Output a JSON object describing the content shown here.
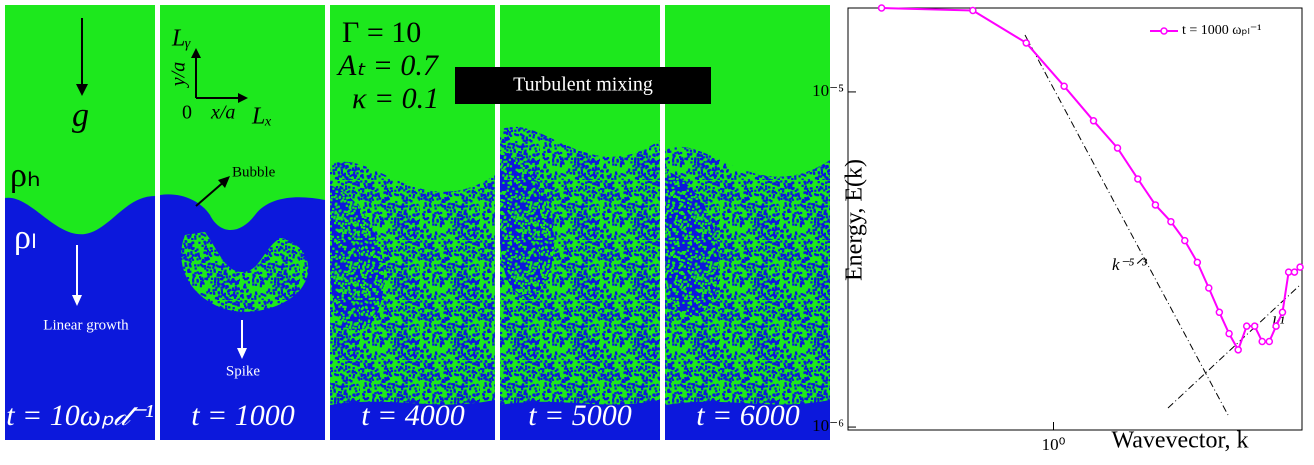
{
  "left": {
    "gravity": "g",
    "rho_h": "ρₕ",
    "rho_l": "ρₗ",
    "linear_growth": "Linear growth",
    "bubble": "Bubble",
    "spike": "Spike",
    "axis_ly": "Lᵧ",
    "axis_ya": "y/a",
    "axis_zero": "0",
    "axis_xa": "x/a",
    "axis_lx": "Lₓ",
    "params": [
      "Γ = 10",
      "Aₜ = 0.7",
      "κ = 0.1"
    ],
    "banner": "Turbulent mixing",
    "times": [
      "t = 10ωₚ𝒹⁻¹",
      "t = 1000",
      "t = 4000",
      "t = 5000",
      "t = 6000"
    ]
  },
  "chart_data": {
    "type": "line",
    "xlabel": "Wavevector, k",
    "ylabel": "Energy, E(k)",
    "xscale": "log",
    "yscale": "log",
    "xlim": [
      0.21,
      6.6
    ],
    "ylim": [
      9.8e-07,
      1.78e-05
    ],
    "xticks": [
      {
        "value": 1,
        "label": "10⁰"
      }
    ],
    "yticks": [
      {
        "value": 1e-06,
        "label": "10⁻⁶"
      },
      {
        "value": 1e-05,
        "label": "10⁻⁵"
      }
    ],
    "x": [
      0.271,
      0.542,
      0.813,
      1.084,
      1.355,
      1.626,
      1.897,
      2.168,
      2.439,
      2.71,
      2.981,
      3.252,
      3.523,
      3.794,
      4.065,
      4.336,
      4.607,
      4.878,
      5.149,
      5.42,
      5.691,
      5.962,
      6.233,
      6.504
    ],
    "series": [
      {
        "name": "t = 1000 ωₚₗ⁻¹",
        "color": "#ff00ff",
        "values": [
          1.78e-05,
          1.75e-05,
          1.4e-05,
          1.04e-05,
          8.2e-06,
          6.8e-06,
          5.5e-06,
          4.6e-06,
          4.1e-06,
          3.6e-06,
          3.1e-06,
          2.6e-06,
          2.2e-06,
          1.9e-06,
          1.7e-06,
          2e-06,
          2e-06,
          1.8e-06,
          1.8e-06,
          2e-06,
          2.2e-06,
          2.9e-06,
          2.9e-06,
          3e-06
        ]
      }
    ],
    "legend": "upper right",
    "slope_labels": [
      "k⁻⁵ᐟ³",
      "k¹"
    ]
  }
}
